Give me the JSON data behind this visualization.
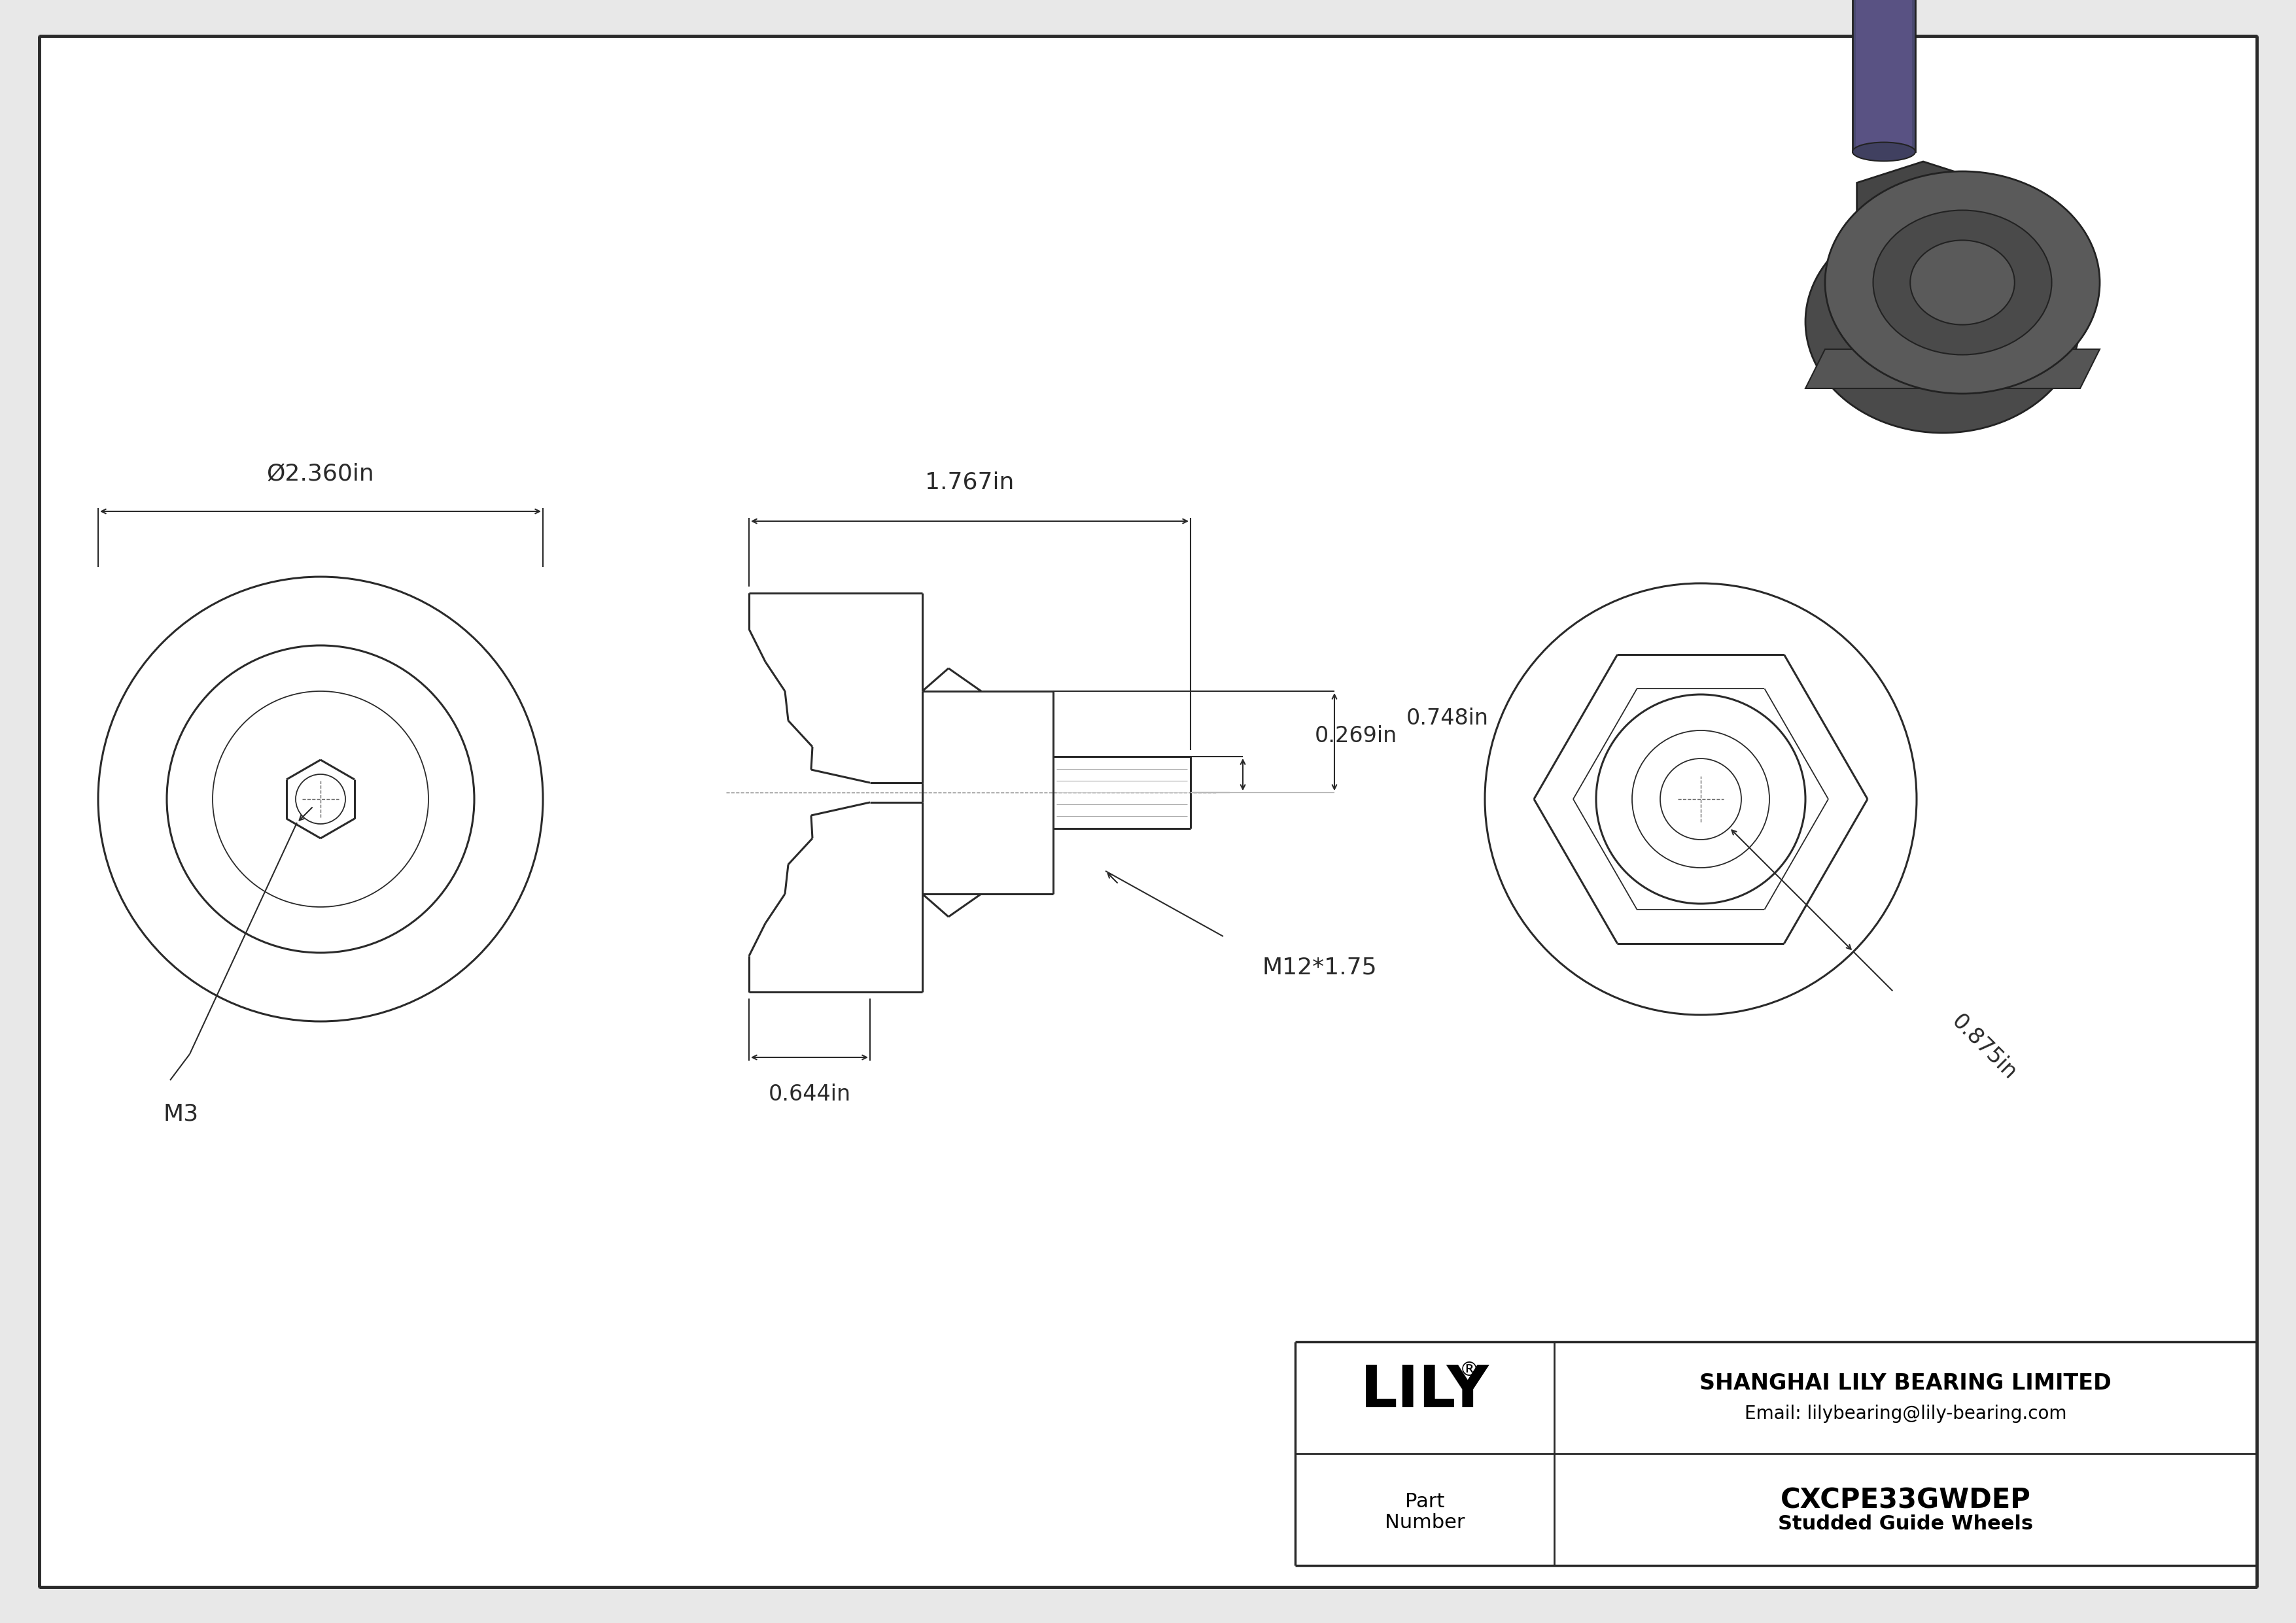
{
  "bg_color": "#e8e8e8",
  "inner_bg": "#ffffff",
  "border_color": "#444444",
  "line_color": "#2a2a2a",
  "dim_color": "#2a2a2a",
  "company": "SHANGHAI LILY BEARING LIMITED",
  "email": "Email: lilybearing@lily-bearing.com",
  "part_label": "Part\nNumber",
  "part_number": "CXCPE33GWDEP",
  "product": "Studded Guide Wheels",
  "dim_phi": "Ø2.360in",
  "dim_1767": "1.767in",
  "dim_0269": "0.269in",
  "dim_0748": "0.748in",
  "dim_0644": "0.644in",
  "dim_m12": "M12*1.75",
  "dim_m3": "M3",
  "dim_0875": "0.875in"
}
